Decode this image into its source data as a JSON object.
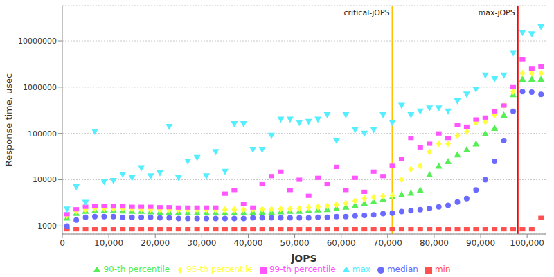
{
  "chart_data": {
    "type": "scatter",
    "x_label": "jOPS",
    "y_label": "Response time, usec",
    "log": "y",
    "grid": true,
    "legend": "bottom",
    "xlim": [
      0,
      104000
    ],
    "ylim": [
      670,
      58000000
    ],
    "xticks": [
      0,
      {
        "value": 10000,
        "label": "10,000"
      },
      {
        "value": 20000,
        "label": "20,000"
      },
      {
        "value": 30000,
        "label": "30,000"
      },
      {
        "value": 40000,
        "label": "40,000"
      },
      {
        "value": 50000,
        "label": "50,000"
      },
      {
        "value": 60000,
        "label": "60,000"
      },
      {
        "value": 70000,
        "label": "70,000"
      },
      {
        "value": 80000,
        "label": "80,000"
      },
      {
        "value": 90000,
        "label": "90,000"
      },
      {
        "value": 100000,
        "label": "100,000"
      }
    ],
    "yticks": [
      1000,
      10000,
      100000,
      1000000,
      10000000
    ],
    "annotations": [
      {
        "label": "critical-jOPS",
        "x": 71000,
        "color": "#ffc000"
      },
      {
        "label": "max-jOPS",
        "x": 98000,
        "color": "#ff0000"
      }
    ],
    "x": [
      1000,
      3000,
      5000,
      7000,
      9000,
      11000,
      13000,
      15000,
      17000,
      19000,
      21000,
      23000,
      25000,
      27000,
      29000,
      31000,
      33000,
      35000,
      37000,
      39000,
      41000,
      43000,
      45000,
      47000,
      49000,
      51000,
      53000,
      55000,
      57000,
      59000,
      61000,
      63000,
      65000,
      67000,
      69000,
      71000,
      73000,
      75000,
      77000,
      79000,
      81000,
      83000,
      85000,
      87000,
      89000,
      91000,
      93000,
      95000,
      97000,
      99000,
      101000,
      103000
    ],
    "series": [
      {
        "name": "min",
        "color": "#ff5050",
        "marker": "square",
        "values": [
          850,
          850,
          850,
          850,
          850,
          850,
          850,
          850,
          850,
          850,
          850,
          850,
          850,
          850,
          850,
          850,
          850,
          850,
          850,
          850,
          850,
          850,
          850,
          850,
          850,
          850,
          850,
          850,
          850,
          850,
          850,
          850,
          850,
          850,
          850,
          850,
          850,
          850,
          850,
          850,
          850,
          850,
          850,
          850,
          850,
          850,
          850,
          850,
          850,
          850,
          850,
          1500
        ]
      },
      {
        "name": "median",
        "color": "#6a6aff",
        "marker": "circle",
        "values": [
          1000,
          1350,
          1550,
          1600,
          1600,
          1600,
          1550,
          1550,
          1550,
          1550,
          1500,
          1500,
          1450,
          1450,
          1450,
          1450,
          1450,
          1450,
          1450,
          1450,
          1500,
          1500,
          1500,
          1500,
          1500,
          1500,
          1500,
          1550,
          1550,
          1600,
          1600,
          1650,
          1700,
          1750,
          1850,
          1900,
          2050,
          2150,
          2250,
          2400,
          2600,
          2800,
          3300,
          3900,
          6000,
          10000,
          25000,
          70000,
          300000,
          800000,
          780000,
          700000
        ]
      },
      {
        "name": "90-th percentile",
        "color": "#55ee55",
        "marker": "triangle",
        "values": [
          1500,
          1900,
          2100,
          2200,
          2200,
          2200,
          2150,
          2100,
          2100,
          2050,
          2000,
          2000,
          2000,
          1950,
          1950,
          1950,
          1950,
          1950,
          1950,
          1950,
          2000,
          2000,
          2000,
          2050,
          2100,
          2100,
          2200,
          2250,
          2300,
          2400,
          2600,
          2800,
          3100,
          3400,
          3800,
          4300,
          4800,
          5200,
          6000,
          13000,
          20000,
          25000,
          35000,
          45000,
          60000,
          100000,
          130000,
          250000,
          700000,
          1500000,
          1500000,
          1500000
        ]
      },
      {
        "name": "95-th percentile",
        "color": "#ffff40",
        "marker": "diamond",
        "values": [
          1700,
          2100,
          2300,
          2400,
          2400,
          2400,
          2400,
          2350,
          2300,
          2300,
          2300,
          2250,
          2250,
          2250,
          2250,
          2250,
          2250,
          2250,
          2250,
          2250,
          2300,
          2300,
          2300,
          2350,
          2350,
          2400,
          2500,
          2600,
          2700,
          2900,
          3100,
          3500,
          3900,
          4200,
          4400,
          4600,
          10000,
          17000,
          20000,
          40000,
          60000,
          60000,
          90000,
          110000,
          170000,
          180000,
          250000,
          400000,
          800000,
          2000000,
          2000000,
          2000000
        ]
      },
      {
        "name": "99-th percentile",
        "color": "#ff55ff",
        "marker": "square",
        "values": [
          1800,
          2300,
          2600,
          2700,
          2700,
          2650,
          2650,
          2600,
          2600,
          2600,
          2550,
          2550,
          2500,
          2500,
          2500,
          2500,
          2500,
          5000,
          6000,
          3000,
          2500,
          8000,
          12000,
          15000,
          6000,
          10000,
          4500,
          11000,
          8000,
          19000,
          6000,
          11000,
          5500,
          15000,
          12000,
          20000,
          28000,
          80000,
          50000,
          60000,
          100000,
          80000,
          150000,
          140000,
          200000,
          220000,
          300000,
          400000,
          1000000,
          4000000,
          2500000,
          2800000
        ]
      },
      {
        "name": "max",
        "color": "#55eeff",
        "marker": "triangle-down",
        "values": [
          2300,
          7000,
          3200,
          110000,
          9000,
          9500,
          13000,
          11000,
          18000,
          12000,
          14000,
          140000,
          11000,
          25000,
          30000,
          12000,
          40000,
          15000,
          160000,
          160000,
          45000,
          45000,
          90000,
          200000,
          200000,
          170000,
          180000,
          200000,
          250000,
          70000,
          250000,
          120000,
          100000,
          120000,
          250000,
          170000,
          400000,
          250000,
          300000,
          350000,
          350000,
          300000,
          500000,
          700000,
          900000,
          1800000,
          1500000,
          1800000,
          5500000,
          15000000,
          14000000,
          20000000
        ]
      }
    ]
  }
}
